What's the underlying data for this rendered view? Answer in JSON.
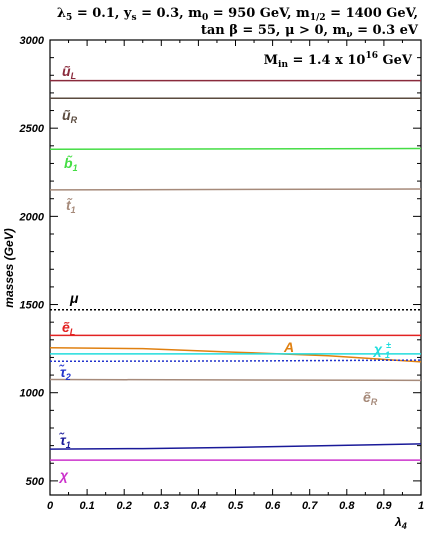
{
  "header": {
    "line1": "λ5 = 0.1, ys = 0.3, m0 = 950 GeV, m1/2 = 1400 GeV,",
    "line2": "tan β = 55, μ > 0, mν = 0.3 eV"
  },
  "chart_data": {
    "type": "line",
    "title": "",
    "xlabel": "λ4",
    "ylabel": "masses (GeV)",
    "xlim": [
      0,
      1
    ],
    "ylim": [
      420,
      3000
    ],
    "xticks": [
      "0",
      "0.1",
      "0.2",
      "0.3",
      "0.4",
      "0.5",
      "0.6",
      "0.7",
      "0.8",
      "0.9",
      "1"
    ],
    "yticks": [
      "500",
      "1000",
      "1500",
      "2000",
      "2500",
      "3000"
    ],
    "annotation": "Min = 1.4 x 10^16 GeV",
    "grid": false,
    "series": [
      {
        "name": "ũL",
        "color": "#8a2a3c",
        "dash": false,
        "x": [
          0,
          1
        ],
        "y": [
          2770,
          2770
        ]
      },
      {
        "name": "ũR",
        "color": "#5a4a3e",
        "dash": false,
        "x": [
          0,
          1
        ],
        "y": [
          2670,
          2670
        ]
      },
      {
        "name": "b̃1",
        "color": "#44dd44",
        "dash": false,
        "x": [
          0,
          1
        ],
        "y": [
          2380,
          2385
        ]
      },
      {
        "name": "t̃1",
        "color": "#a68a7a",
        "dash": false,
        "x": [
          0,
          1
        ],
        "y": [
          2150,
          2155
        ]
      },
      {
        "name": "μ",
        "color": "#000000",
        "dash": true,
        "x": [
          0,
          1
        ],
        "y": [
          1470,
          1470
        ]
      },
      {
        "name": "ẽL",
        "color": "#e22222",
        "dash": false,
        "x": [
          0,
          1
        ],
        "y": [
          1325,
          1325
        ]
      },
      {
        "name": "A",
        "color": "#e08010",
        "dash": false,
        "x": [
          0,
          0.25,
          0.5,
          0.75,
          1.0
        ],
        "y": [
          1255,
          1250,
          1230,
          1210,
          1175
        ]
      },
      {
        "name": "χ±1",
        "color": "#22dddd",
        "dash": false,
        "x": [
          0,
          1
        ],
        "y": [
          1220,
          1220
        ]
      },
      {
        "name": "τ̃2",
        "color": "#2233cc",
        "dash": true,
        "x": [
          0,
          0.5,
          1
        ],
        "y": [
          1178,
          1180,
          1185
        ]
      },
      {
        "name": "ẽR",
        "color": "#a68a7a",
        "dash": false,
        "x": [
          0,
          1
        ],
        "y": [
          1075,
          1070
        ]
      },
      {
        "name": "τ̃1",
        "color": "#1a1a99",
        "dash": false,
        "x": [
          0,
          0.25,
          0.5,
          0.75,
          1.0
        ],
        "y": [
          680,
          683,
          690,
          700,
          710
        ]
      },
      {
        "name": "χ",
        "color": "#cc33cc",
        "dash": false,
        "x": [
          0,
          1
        ],
        "y": [
          618,
          618
        ]
      }
    ]
  }
}
